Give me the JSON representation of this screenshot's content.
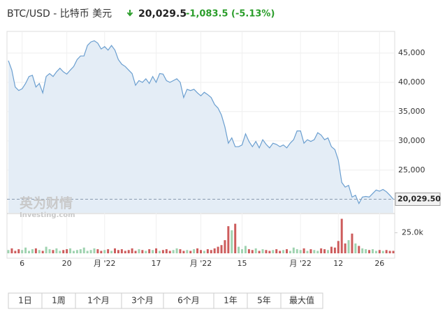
{
  "header": {
    "symbol": "BTC/USD - 比特币 美元",
    "price": "20,029.5",
    "change": "-1,083.5 (-5.13%)"
  },
  "watermark": {
    "brand": "英为财情",
    "site": "Investing.com"
  },
  "buttons": [
    "1日",
    "1周",
    "1个月",
    "3个月",
    "6个月",
    "1年",
    "5年",
    "最大值"
  ],
  "chart_data": {
    "type": "line",
    "categories": [
      null,
      null,
      null,
      null,
      "6",
      null,
      null,
      null,
      null,
      null,
      null,
      null,
      null,
      null,
      null,
      null,
      null,
      "20",
      null,
      null,
      null,
      null,
      null,
      null,
      null,
      null,
      null,
      null,
      "月 '22",
      null,
      null,
      null,
      null,
      null,
      null,
      null,
      null,
      null,
      null,
      null,
      null,
      null,
      null,
      "17",
      null,
      null,
      null,
      null,
      null,
      null,
      null,
      null,
      null,
      null,
      null,
      null,
      "月 '22",
      null,
      null,
      null,
      null,
      null,
      null,
      null,
      null,
      null,
      null,
      null,
      "15",
      null,
      null,
      null,
      null,
      null,
      null,
      null,
      null,
      null,
      null,
      null,
      null,
      null,
      null,
      null,
      null,
      "月 '22",
      null,
      null,
      null,
      null,
      null,
      null,
      null,
      null,
      null,
      null,
      "12",
      null,
      null,
      null,
      null,
      null,
      null,
      null,
      null,
      null,
      null,
      null,
      "26",
      null,
      null,
      null,
      null
    ],
    "series": [
      {
        "name": "BTC/USD",
        "color": "#6b9fd0",
        "values": [
          43700,
          42100,
          39200,
          38600,
          38900,
          39800,
          41000,
          41200,
          39200,
          39800,
          38200,
          41000,
          41500,
          41000,
          41800,
          42400,
          41800,
          41400,
          42100,
          42700,
          43900,
          44500,
          44500,
          46300,
          46900,
          47100,
          46700,
          45700,
          46100,
          45500,
          46300,
          45500,
          43900,
          43100,
          42700,
          42100,
          41500,
          39500,
          40300,
          40000,
          40600,
          39800,
          41000,
          40000,
          41500,
          41400,
          40300,
          40000,
          40300,
          40600,
          40000,
          37400,
          38800,
          38600,
          38800,
          38200,
          37700,
          38300,
          37900,
          37400,
          36200,
          35600,
          34400,
          32400,
          29600,
          30500,
          29000,
          29000,
          29300,
          31200,
          29900,
          29000,
          29900,
          28800,
          30200,
          29400,
          28800,
          29600,
          29400,
          29000,
          29300,
          28800,
          29600,
          30200,
          31700,
          31700,
          29600,
          30200,
          29900,
          30200,
          31400,
          31000,
          30200,
          30500,
          29000,
          28500,
          26700,
          22900,
          22100,
          22400,
          20400,
          20700,
          19300,
          20400,
          20500,
          20400,
          21000,
          21600,
          21400,
          21700,
          21300,
          20700,
          20029.5
        ]
      },
      {
        "name": "Volume",
        "up_color": "#9fd3b0",
        "down_color": "#cd5c5c",
        "axis": "y2",
        "values": [
          4000,
          6000,
          3000,
          5000,
          4000,
          7000,
          3000,
          5000,
          6000,
          4000,
          3000,
          8000,
          5000,
          4000,
          6000,
          3000,
          4000,
          5000,
          6000,
          3000,
          4000,
          5000,
          7000,
          3000,
          4000,
          6000,
          5000,
          3000,
          4000,
          5000,
          3000,
          6000,
          4000,
          5000,
          3000,
          4000,
          6000,
          3000,
          5000,
          4000,
          3000,
          5000,
          4000,
          6000,
          3000,
          4000,
          5000,
          3000,
          4000,
          6000,
          5000,
          3000,
          4000,
          3000,
          5000,
          6000,
          4000,
          3000,
          5000,
          4000,
          6000,
          8000,
          10000,
          16000,
          33000,
          28000,
          36000,
          8000,
          5000,
          9000,
          5000,
          4000,
          6000,
          3000,
          5000,
          4000,
          3000,
          4000,
          5000,
          3000,
          4000,
          5000,
          3000,
          7000,
          5000,
          4000,
          6000,
          3000,
          5000,
          4000,
          3000,
          6000,
          5000,
          4000,
          8000,
          7000,
          15000,
          42000,
          12000,
          16000,
          24000,
          12000,
          9000,
          6000,
          5000,
          4000,
          5000,
          3000,
          4000,
          3000,
          4000,
          3000,
          3000
        ]
      }
    ],
    "last_price_label": "20,029.50",
    "ylim": [
      17700,
      48700
    ],
    "yticks": [
      {
        "value": 25000,
        "label": "25,000"
      },
      {
        "value": 30000,
        "label": "30,000"
      },
      {
        "value": 35000,
        "label": "35,000"
      },
      {
        "value": 40000,
        "label": "40,000"
      },
      {
        "value": 45000,
        "label": "45,000"
      }
    ],
    "y2lim": [
      0,
      45000
    ],
    "y2ticks": [
      {
        "value": 25000,
        "label": "25.0k"
      }
    ],
    "grid": true
  }
}
